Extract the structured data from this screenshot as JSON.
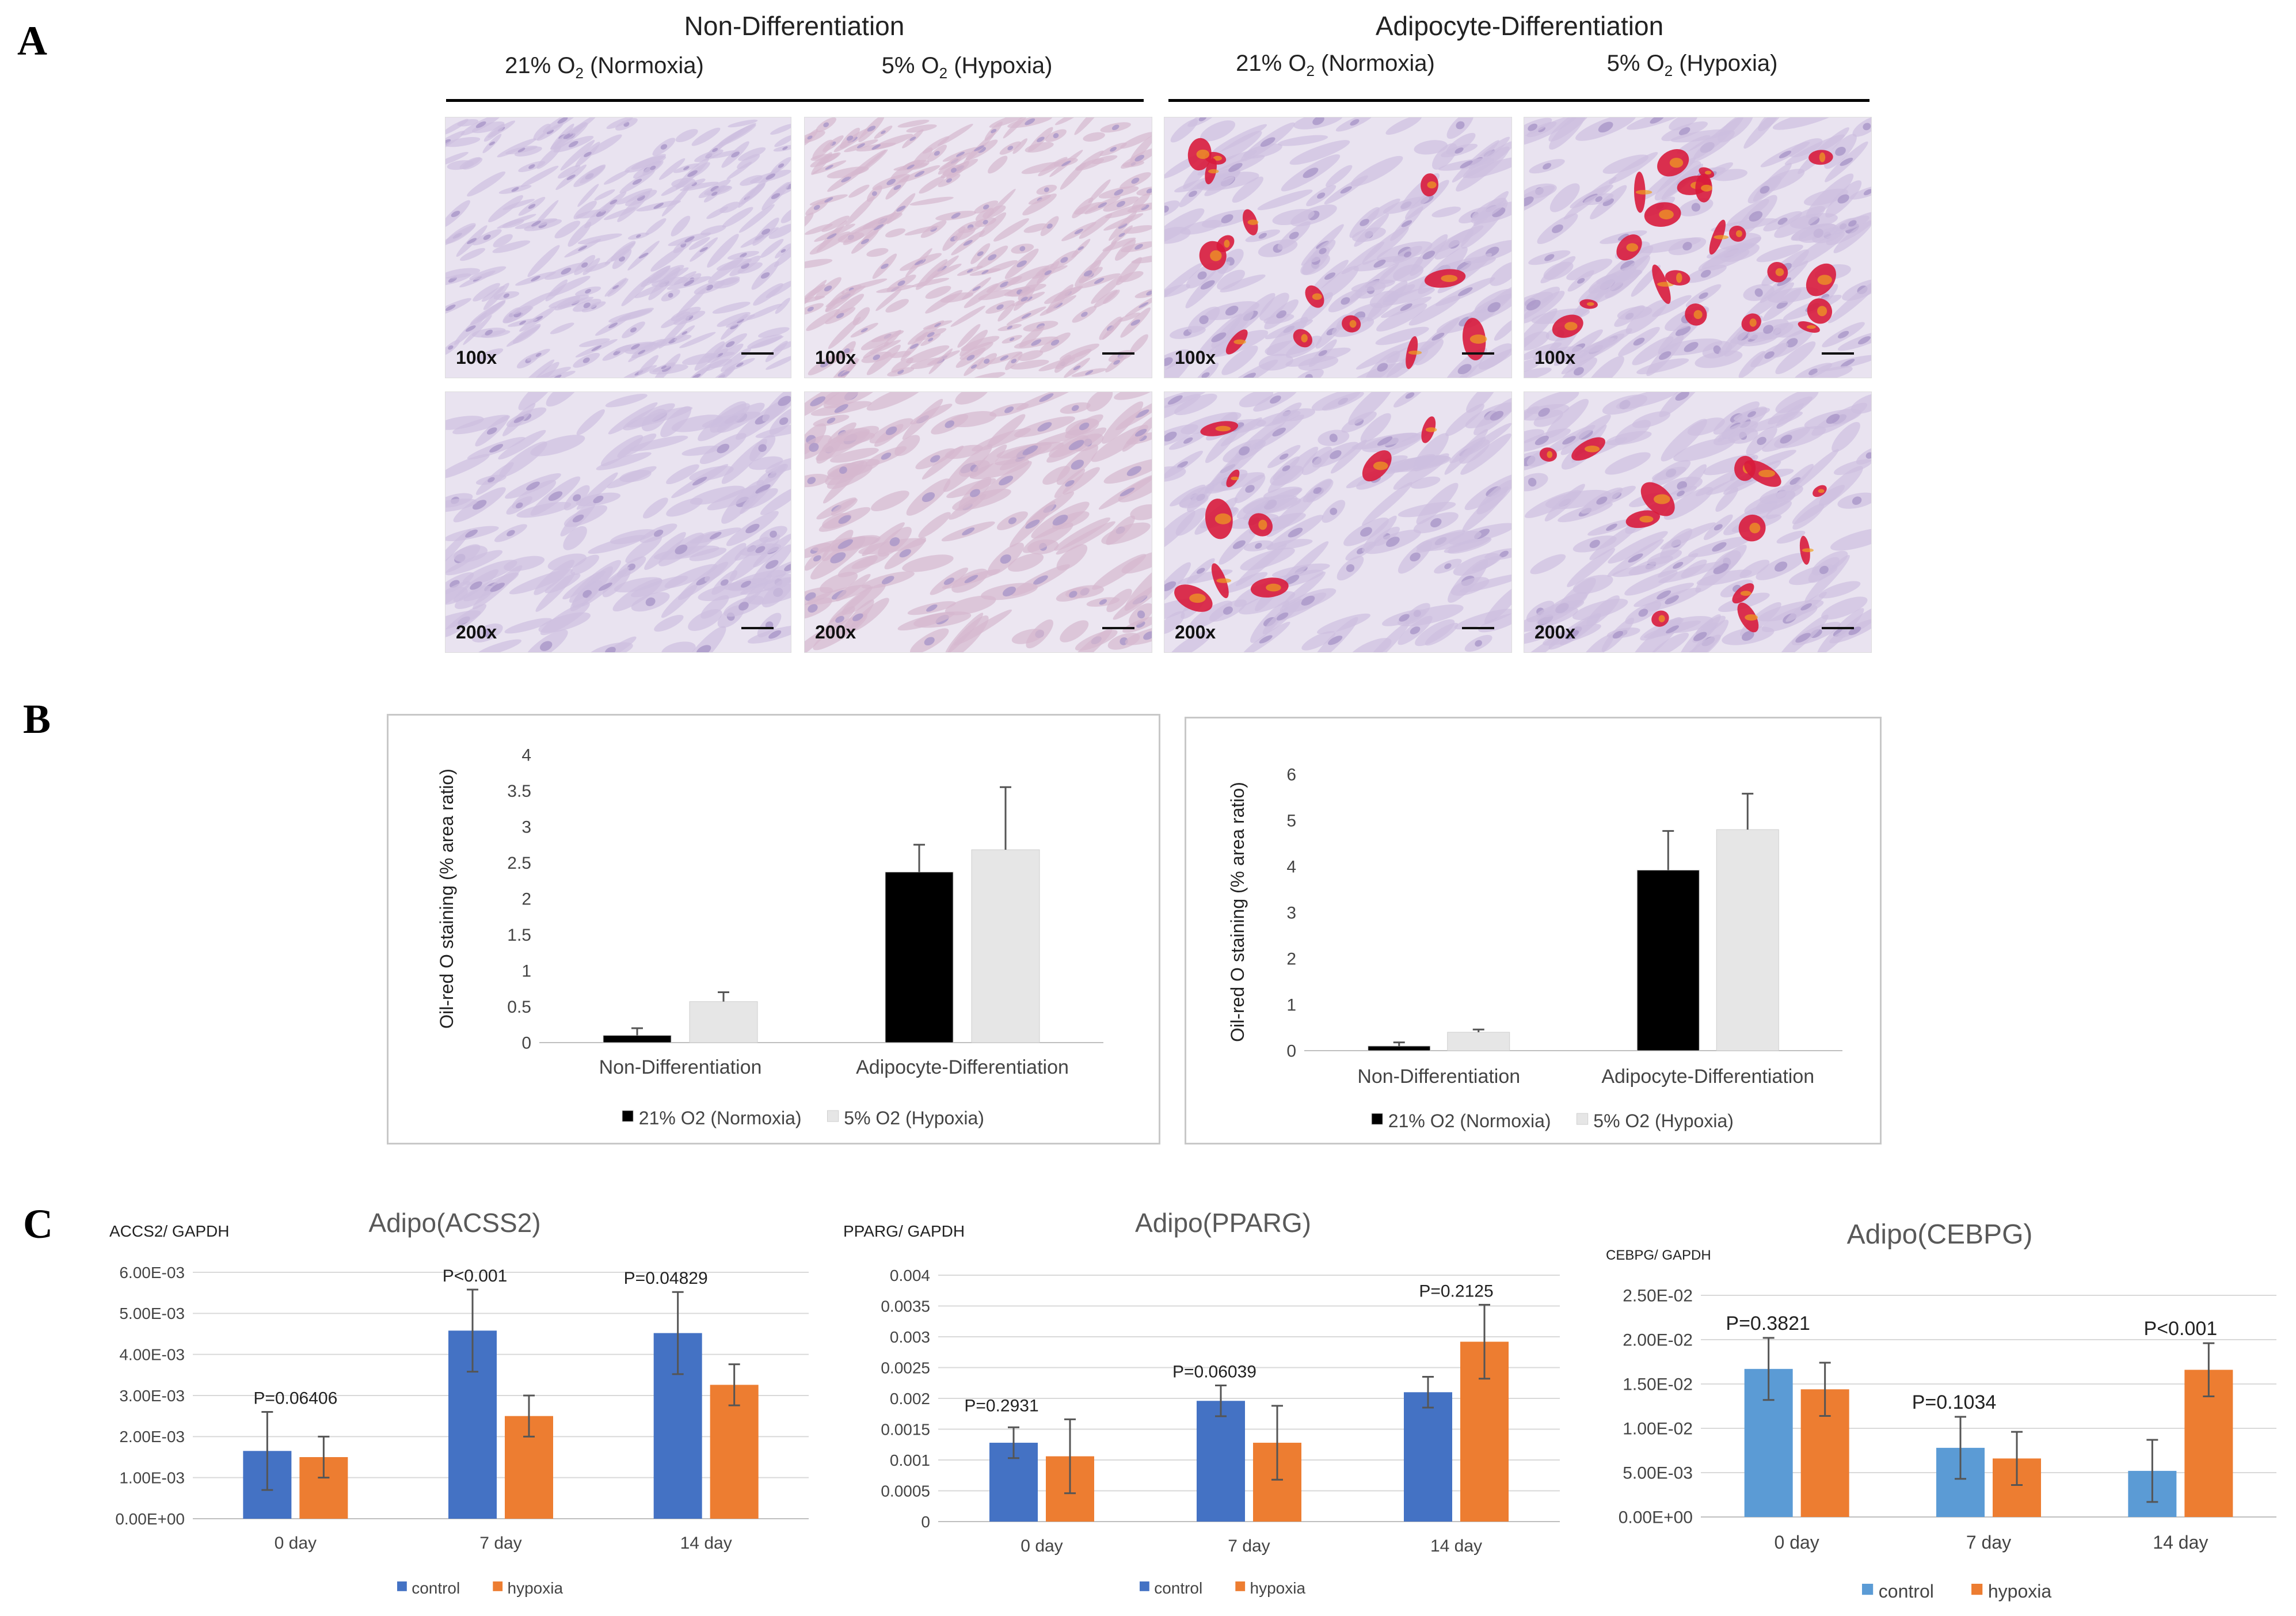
{
  "panels": {
    "A": "A",
    "B": "B",
    "C": "C"
  },
  "panel_a": {
    "group_titles": [
      "Non-Differentiation",
      "Adipocyte-Differentiation"
    ],
    "condition_labels": [
      {
        "pct": "21%",
        "o": "O",
        "sub": "2",
        "rest": " (Normoxia)"
      },
      {
        "pct": "5%",
        "o": "O",
        "sub": "2",
        "rest": " (Hypoxia)"
      },
      {
        "pct": "21%",
        "o": "O",
        "sub": "2",
        "rest": " (Normoxia)"
      },
      {
        "pct": "5%",
        "o": "O",
        "sub": "2",
        "rest": " (Hypoxia)"
      }
    ],
    "magnifications": [
      "100x",
      "100x",
      "100x",
      "100x",
      "200x",
      "200x",
      "200x",
      "200x"
    ]
  },
  "colors": {
    "normoxia_bar": "#000000",
    "hypoxia_bar": "#e6e6e6",
    "control_dark": "#4472c4",
    "control_light": "#5b9bd5",
    "hypoxia_orange": "#ed7d31"
  },
  "chart_data": [
    {
      "type": "bar",
      "categories": [
        "Non-Differentiation",
        "Adipocyte-Differentiation"
      ],
      "series": [
        {
          "name": "21% O2 (Normoxia)",
          "values": [
            0.1,
            2.37
          ],
          "errors": [
            0.1,
            0.38
          ]
        },
        {
          "name": "5% O2 (Hypoxia)",
          "values": [
            0.57,
            2.68
          ],
          "errors": [
            0.13,
            0.87
          ]
        }
      ],
      "ylabel": "Oil-red O staining (% area ratio)",
      "yticks": [
        "0",
        "0.5",
        "1",
        "1.5",
        "2",
        "2.5",
        "3",
        "3.5",
        "4"
      ],
      "ylim": [
        0,
        4
      ],
      "legend": "bottom",
      "grid": false
    },
    {
      "type": "bar",
      "categories": [
        "Non-Differentiation",
        "Adipocyte-Differentiation"
      ],
      "series": [
        {
          "name": "21% O2 (Normoxia)",
          "values": [
            0.1,
            3.92
          ],
          "errors": [
            0.08,
            0.85
          ]
        },
        {
          "name": "5% O2 (Hypoxia)",
          "values": [
            0.4,
            4.8
          ],
          "errors": [
            0.06,
            0.78
          ]
        }
      ],
      "ylabel": "Oil-red O staining (% area ratio)",
      "yticks": [
        "0",
        "1",
        "2",
        "3",
        "4",
        "5",
        "6"
      ],
      "ylim": [
        0,
        6
      ],
      "legend": "bottom",
      "grid": false
    },
    {
      "type": "bar",
      "title": "Adipo(ACSS2)",
      "ylabel": "ACCS2/ GAPDH",
      "categories": [
        "0 day",
        "7 day",
        "14 day"
      ],
      "series": [
        {
          "name": "control",
          "values": [
            0.00165,
            0.00458,
            0.00452
          ],
          "errors": [
            0.00095,
            0.001,
            0.001
          ]
        },
        {
          "name": "hypoxia",
          "values": [
            0.0015,
            0.0025,
            0.00326
          ],
          "errors": [
            0.0005,
            0.0005,
            0.0005
          ]
        }
      ],
      "annotations": [
        "P=0.06406",
        "P<0.001",
        "P=0.04829"
      ],
      "yticks": [
        "0.00E+00",
        "1.00E-03",
        "2.00E-03",
        "3.00E-03",
        "4.00E-03",
        "5.00E-03",
        "6.00E-03"
      ],
      "ylim": [
        0,
        0.006
      ],
      "legend": "bottom",
      "grid": true
    },
    {
      "type": "bar",
      "title": "Adipo(PPARG)",
      "ylabel": "PPARG/ GAPDH",
      "categories": [
        "0 day",
        "7 day",
        "14 day"
      ],
      "series": [
        {
          "name": "control",
          "values": [
            0.00128,
            0.00196,
            0.0021
          ],
          "errors": [
            0.00025,
            0.00025,
            0.00025
          ]
        },
        {
          "name": "hypoxia",
          "values": [
            0.00106,
            0.00128,
            0.00292
          ],
          "errors": [
            0.0006,
            0.0006,
            0.0006
          ]
        }
      ],
      "annotations": [
        "P=0.2931",
        "P=0.06039",
        "P=0.2125"
      ],
      "yticks": [
        "0",
        "0.0005",
        "0.001",
        "0.0015",
        "0.002",
        "0.0025",
        "0.003",
        "0.0035",
        "0.004"
      ],
      "ylim": [
        0,
        0.004
      ],
      "legend": "bottom",
      "grid": true
    },
    {
      "type": "bar",
      "title": "Adipo(CEBPG)",
      "ylabel": "CEBPG/ GAPDH",
      "categories": [
        "0 day",
        "7 day",
        "14 day"
      ],
      "series": [
        {
          "name": "control",
          "values": [
            0.0167,
            0.0078,
            0.0052
          ],
          "errors": [
            0.0035,
            0.0035,
            0.0035
          ]
        },
        {
          "name": "hypoxia",
          "values": [
            0.0144,
            0.0066,
            0.0166
          ],
          "errors": [
            0.003,
            0.003,
            0.003
          ]
        }
      ],
      "annotations": [
        "P=0.3821",
        "P=0.1034",
        "P<0.001"
      ],
      "yticks": [
        "0.00E+00",
        "5.00E-03",
        "1.00E-02",
        "1.50E-02",
        "2.00E-02",
        "2.50E-02"
      ],
      "ylim": [
        0,
        0.025
      ],
      "legend": "bottom",
      "grid": true
    }
  ]
}
